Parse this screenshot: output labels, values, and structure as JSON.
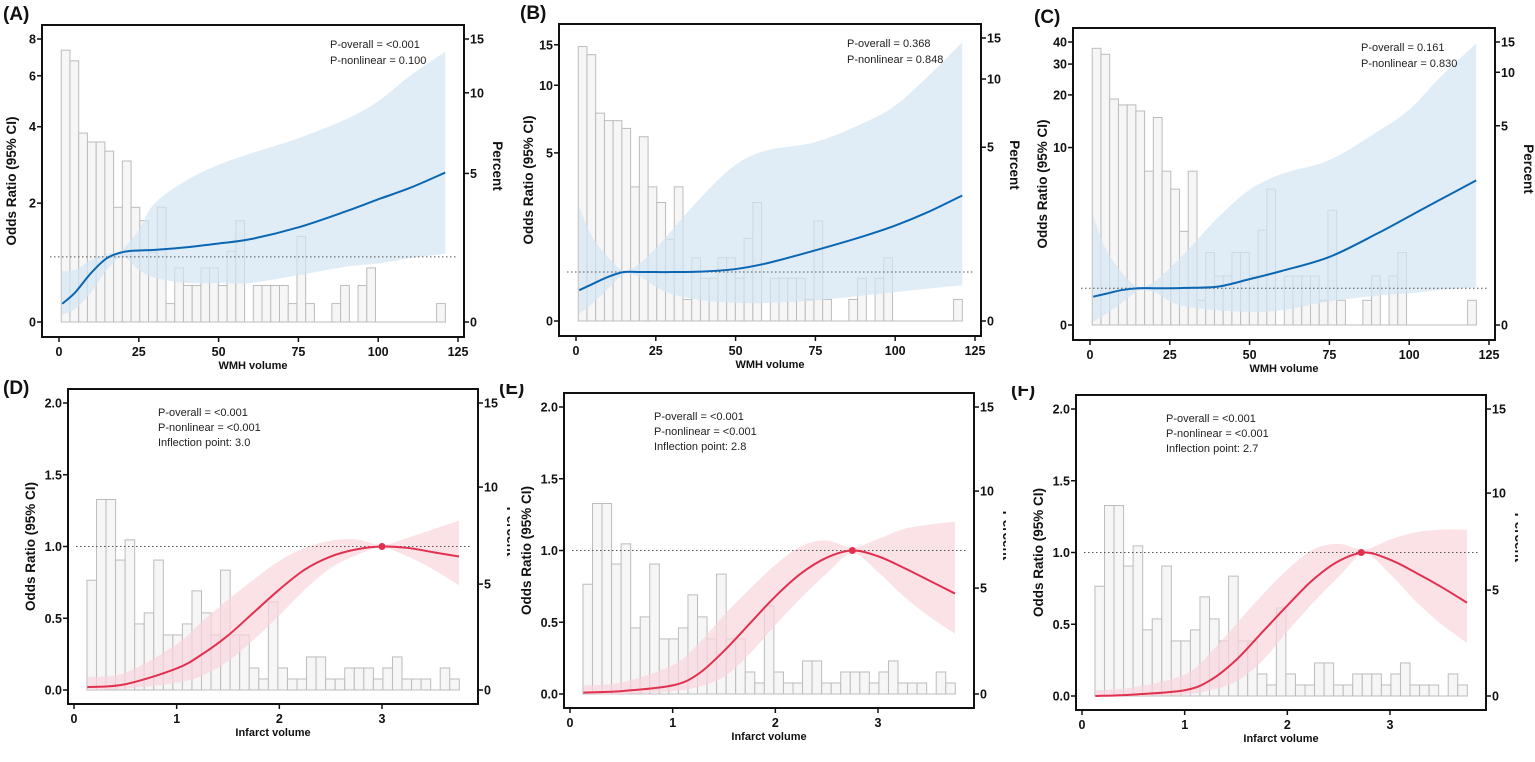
{
  "chart_data": [
    {
      "panel": "(A)",
      "type": "bar+line",
      "xlabel": "WMH volume",
      "ylabel": "Odds Ratio (95% CI)",
      "y2label": "Percent",
      "y_scale": "nonlinear (compressed)",
      "y2_scale": "nonlinear (compressed)",
      "xticks": [
        "0",
        "25",
        "50",
        "75",
        "100",
        "125"
      ],
      "xtick_values": [
        0,
        25,
        50,
        75,
        100,
        125
      ],
      "yticks": [
        "0",
        "2",
        "4",
        "6",
        "8"
      ],
      "ytick_values": [
        0,
        2,
        4,
        6,
        8
      ],
      "y2ticks": [
        "0",
        "5",
        "10",
        "15"
      ],
      "y2tick_values": [
        0,
        5,
        10,
        15
      ],
      "annotations": [
        "P-overall = <0.001",
        "P-nonlinear = 0.100"
      ],
      "reference_line": 1,
      "line_color": "#0b67b2",
      "band_color": "#d3e6f2",
      "histogram": {
        "bin_start": 0.7,
        "bin_width": 2.735,
        "percent": [
          13.96,
          12.97,
          7.5,
          6.95,
          6.95,
          6.38,
          3.86,
          5.77,
          3.86,
          3.41,
          2.35,
          3.86,
          0.62,
          1.82,
          1.23,
          1.23,
          1.82,
          1.82,
          1.23,
          2.38,
          3.41,
          0,
          1.23,
          1.23,
          1.23,
          1.23,
          0.62,
          2.88,
          0.62,
          0,
          0,
          0.62,
          1.23,
          0,
          1.23,
          1.82,
          0,
          0,
          0,
          0,
          0,
          0,
          0,
          0.62
        ]
      },
      "curve": {
        "x": [
          1,
          5,
          10,
          15,
          20,
          25,
          30,
          40,
          50,
          60,
          75,
          90,
          100,
          110,
          121
        ],
        "or": [
          0.28,
          0.45,
          0.75,
          0.98,
          1.09,
          1.12,
          1.13,
          1.18,
          1.25,
          1.33,
          1.55,
          1.85,
          2.1,
          2.4,
          2.8
        ],
        "lower": [
          0.11,
          0.2,
          0.45,
          0.8,
          1.0,
          0.8,
          0.68,
          0.6,
          0.6,
          0.6,
          0.72,
          0.85,
          0.9,
          0.98,
          1.06
        ],
        "upper": [
          0.78,
          0.8,
          0.95,
          1.05,
          1.15,
          1.5,
          2.0,
          2.6,
          3.0,
          3.3,
          3.7,
          4.3,
          5.0,
          6.0,
          7.3
        ]
      }
    },
    {
      "panel": "(B)",
      "type": "bar+line",
      "xlabel": "WMH volume",
      "ylabel": "Odds Ratio (95% CI)",
      "y2label": "Percent",
      "y_scale": "nonlinear (compressed)",
      "y2_scale": "nonlinear (compressed)",
      "xticks": [
        "0",
        "25",
        "50",
        "75",
        "100",
        "125"
      ],
      "xtick_values": [
        0,
        25,
        50,
        75,
        100,
        125
      ],
      "yticks": [
        "0",
        "5",
        "10",
        "15"
      ],
      "ytick_values": [
        0,
        5,
        10,
        15
      ],
      "y2ticks": [
        "0",
        "5",
        "10",
        "15"
      ],
      "y2tick_values": [
        0,
        5,
        10,
        15
      ],
      "annotations": [
        "P-overall = 0.368",
        "P-nonlinear = 0.848"
      ],
      "reference_line": 1,
      "line_color": "#0b67b2",
      "band_color": "#d3e6f2",
      "histogram": {
        "bin_start": 0.7,
        "bin_width": 2.735,
        "percent": [
          13.96,
          12.97,
          7.5,
          6.95,
          6.95,
          6.38,
          3.86,
          5.77,
          3.86,
          3.41,
          2.35,
          3.86,
          0.62,
          1.82,
          1.23,
          1.23,
          1.82,
          1.82,
          1.23,
          2.38,
          3.41,
          0,
          1.23,
          1.23,
          1.23,
          1.23,
          0.62,
          2.88,
          0.62,
          0,
          0,
          0.62,
          1.23,
          0,
          1.23,
          1.82,
          0,
          0,
          0,
          0,
          0,
          0,
          0,
          0.62
        ]
      },
      "curve": {
        "x": [
          1,
          5,
          10,
          15,
          20,
          25,
          30,
          40,
          50,
          60,
          75,
          90,
          100,
          110,
          121
        ],
        "or": [
          0.63,
          0.75,
          0.9,
          1.0,
          1.0,
          1.0,
          1.0,
          1.02,
          1.1,
          1.3,
          1.73,
          2.2,
          2.56,
          3.0,
          3.57
        ],
        "lower": [
          0.15,
          0.35,
          0.65,
          0.95,
          0.9,
          0.7,
          0.55,
          0.42,
          0.37,
          0.37,
          0.42,
          0.52,
          0.59,
          0.66,
          0.73
        ],
        "upper": [
          3.2,
          2.2,
          1.5,
          1.05,
          1.3,
          1.8,
          2.4,
          3.6,
          4.6,
          5.2,
          5.8,
          7.2,
          8.5,
          11,
          15.3
        ]
      }
    },
    {
      "panel": "(C)",
      "type": "bar+line",
      "xlabel": "WMH volume",
      "ylabel": "Odds Ratio (95% CI)",
      "y2label": "Percent",
      "y_scale": "nonlinear (compressed)",
      "y2_scale": "nonlinear (compressed)",
      "xticks": [
        "0",
        "25",
        "50",
        "75",
        "100",
        "125"
      ],
      "xtick_values": [
        0,
        25,
        50,
        75,
        100,
        125
      ],
      "yticks": [
        "0",
        "10",
        "20",
        "30",
        "40"
      ],
      "ytick_values": [
        0,
        10,
        20,
        30,
        40
      ],
      "y2ticks": [
        "0",
        "5",
        "10",
        "15"
      ],
      "y2tick_values": [
        0,
        5,
        10,
        15
      ],
      "annotations": [
        "P-overall = 0.161",
        "P-nonlinear = 0.830"
      ],
      "reference_line": 1,
      "line_color": "#0b67b2",
      "band_color": "#d3e6f2",
      "histogram": {
        "bin_start": 0.7,
        "bin_width": 2.735,
        "percent": [
          13.96,
          12.97,
          7.5,
          6.95,
          6.95,
          6.38,
          3.86,
          5.77,
          3.86,
          3.41,
          2.35,
          3.86,
          0.62,
          1.82,
          1.23,
          1.23,
          1.82,
          1.82,
          1.23,
          2.38,
          3.41,
          0,
          1.23,
          1.23,
          1.23,
          1.23,
          0.62,
          2.88,
          0.62,
          0,
          0,
          0.62,
          1.23,
          0,
          1.23,
          1.82,
          0,
          0,
          0,
          0,
          0,
          0,
          0,
          0.62
        ]
      },
      "curve": {
        "x": [
          1,
          5,
          10,
          15,
          20,
          25,
          30,
          40,
          50,
          60,
          75,
          90,
          100,
          110,
          121
        ],
        "or": [
          0.77,
          0.85,
          0.95,
          1.0,
          1.0,
          1.0,
          1.02,
          1.1,
          1.58,
          2.1,
          3.0,
          4.5,
          5.6,
          6.7,
          7.9
        ],
        "lower": [
          0.09,
          0.3,
          0.6,
          0.92,
          0.9,
          0.65,
          0.5,
          0.4,
          0.36,
          0.4,
          0.64,
          0.8,
          0.86,
          0.95,
          1.05
        ],
        "upper": [
          5.6,
          3.5,
          2.0,
          1.1,
          1.4,
          2.3,
          3.3,
          5.5,
          7.3,
          8.3,
          9.2,
          13,
          17.2,
          26,
          39.4
        ]
      }
    },
    {
      "panel": "(D)",
      "type": "bar+line",
      "xlabel": "Infarct volume",
      "ylabel": "Odds Ratio (95% CI)",
      "y2label": "Percent",
      "y_scale": "linear",
      "ylim": [
        0,
        2
      ],
      "xticks": [
        "0",
        "1",
        "2",
        "3"
      ],
      "xtick_values": [
        0,
        1,
        2,
        3
      ],
      "yticks": [
        "0.0",
        "0.5",
        "1.0",
        "1.5",
        "2.0"
      ],
      "ytick_values": [
        0,
        0.5,
        1,
        1.5,
        2
      ],
      "y2ticks": [
        "0",
        "5",
        "10",
        "15"
      ],
      "y2tick_values": [
        0,
        5,
        10,
        15
      ],
      "annotations": [
        "P-overall = <0.001",
        "P-nonlinear = <0.001",
        "Inflection point: 3.0"
      ],
      "reference_line": 1,
      "inflection_x": 3.0,
      "line_color": "#e0314f",
      "band_color": "#f8d6dd",
      "histogram": {
        "bin_start": 0.126,
        "bin_width": 0.093,
        "percent": [
          5.2,
          9.36,
          9.36,
          6.24,
          7.28,
          3.12,
          3.64,
          6.24,
          2.6,
          2.6,
          3.12,
          4.68,
          3.64,
          2.6,
          5.72,
          2.6,
          2.6,
          1.04,
          0.52,
          4.16,
          1.04,
          0.52,
          0.52,
          1.56,
          1.56,
          0.52,
          0.52,
          1.04,
          1.04,
          1.04,
          0.52,
          1.04,
          1.56,
          0.52,
          0.52,
          0.52,
          0,
          1.04,
          0.52
        ]
      },
      "curve": {
        "x": [
          0.13,
          0.5,
          1.0,
          1.25,
          1.5,
          1.75,
          2.0,
          2.25,
          2.5,
          2.75,
          3.0,
          3.25,
          3.5,
          3.75
        ],
        "or": [
          0.02,
          0.04,
          0.15,
          0.25,
          0.38,
          0.54,
          0.7,
          0.84,
          0.93,
          0.98,
          1.0,
          0.99,
          0.96,
          0.93
        ],
        "lower": [
          0.0,
          0.01,
          0.05,
          0.1,
          0.2,
          0.35,
          0.52,
          0.7,
          0.85,
          0.94,
          0.99,
          0.93,
          0.84,
          0.73
        ],
        "upper": [
          0.09,
          0.12,
          0.32,
          0.48,
          0.63,
          0.77,
          0.9,
          0.99,
          1.04,
          1.05,
          1.01,
          1.06,
          1.12,
          1.18
        ]
      }
    },
    {
      "panel": "(E)",
      "type": "bar+line",
      "xlabel": "Infarct volume",
      "ylabel": "Odds Ratio (95% CI)",
      "y2label": "Percent",
      "y_scale": "linear",
      "ylim": [
        0,
        2
      ],
      "xticks": [
        "0",
        "1",
        "2",
        "3"
      ],
      "xtick_values": [
        0,
        1,
        2,
        3
      ],
      "yticks": [
        "0.0",
        "0.5",
        "1.0",
        "1.5",
        "2.0"
      ],
      "ytick_values": [
        0,
        0.5,
        1,
        1.5,
        2
      ],
      "y2ticks": [
        "0",
        "5",
        "10",
        "15"
      ],
      "y2tick_values": [
        0,
        5,
        10,
        15
      ],
      "annotations": [
        "P-overall = <0.001",
        "P-nonlinear = <0.001",
        "Inflection point: 2.8"
      ],
      "reference_line": 1,
      "inflection_x": 2.75,
      "line_color": "#e0314f",
      "band_color": "#f8d6dd",
      "histogram": {
        "bin_start": 0.126,
        "bin_width": 0.093,
        "percent": [
          5.2,
          9.36,
          9.36,
          6.24,
          7.28,
          3.12,
          3.64,
          6.24,
          2.6,
          2.6,
          3.12,
          4.68,
          3.64,
          2.6,
          5.72,
          2.6,
          2.6,
          1.04,
          0.52,
          4.16,
          1.04,
          0.52,
          0.52,
          1.56,
          1.56,
          0.52,
          0.52,
          1.04,
          1.04,
          1.04,
          0.52,
          1.04,
          1.56,
          0.52,
          0.52,
          0.52,
          0,
          1.04,
          0.52
        ]
      },
      "curve": {
        "x": [
          0.13,
          0.5,
          1.0,
          1.25,
          1.5,
          1.75,
          2.0,
          2.25,
          2.5,
          2.75,
          3.0,
          3.25,
          3.5,
          3.75
        ],
        "or": [
          0.01,
          0.02,
          0.06,
          0.14,
          0.3,
          0.49,
          0.68,
          0.84,
          0.95,
          1.0,
          0.96,
          0.88,
          0.79,
          0.7
        ],
        "lower": [
          0.0,
          0.0,
          0.02,
          0.05,
          0.12,
          0.28,
          0.48,
          0.67,
          0.84,
          0.98,
          0.85,
          0.68,
          0.54,
          0.42
        ],
        "upper": [
          0.06,
          0.08,
          0.2,
          0.35,
          0.55,
          0.73,
          0.9,
          1.03,
          1.07,
          1.02,
          1.08,
          1.15,
          1.18,
          1.2
        ]
      }
    },
    {
      "panel": "(F)",
      "type": "bar+line",
      "xlabel": "Infarct volume",
      "ylabel": "Odds Ratio (95% CI)",
      "y2label": "Percent",
      "y_scale": "linear",
      "ylim": [
        0,
        2
      ],
      "xticks": [
        "0",
        "1",
        "2",
        "3"
      ],
      "xtick_values": [
        0,
        1,
        2,
        3
      ],
      "yticks": [
        "0.0",
        "0.5",
        "1.0",
        "1.5",
        "2.0"
      ],
      "ytick_values": [
        0,
        0.5,
        1,
        1.5,
        2
      ],
      "y2ticks": [
        "0",
        "5",
        "10",
        "15"
      ],
      "y2tick_values": [
        0,
        5,
        10,
        15
      ],
      "annotations": [
        "P-overall = <0.001",
        "P-nonlinear = <0.001",
        "Inflection point: 2.7"
      ],
      "reference_line": 1,
      "inflection_x": 2.72,
      "line_color": "#e0314f",
      "band_color": "#f8d6dd",
      "histogram": {
        "bin_start": 0.126,
        "bin_width": 0.093,
        "percent": [
          5.2,
          9.36,
          9.36,
          6.24,
          7.28,
          3.12,
          3.64,
          6.24,
          2.6,
          2.6,
          3.12,
          4.68,
          3.64,
          2.6,
          5.72,
          2.6,
          2.6,
          1.04,
          0.52,
          4.16,
          1.04,
          0.52,
          0.52,
          1.56,
          1.56,
          0.52,
          0.52,
          1.04,
          1.04,
          1.04,
          0.52,
          1.04,
          1.56,
          0.52,
          0.52,
          0.52,
          0,
          1.04,
          0.52
        ]
      },
      "curve": {
        "x": [
          0.13,
          0.5,
          1.0,
          1.25,
          1.5,
          1.75,
          2.0,
          2.25,
          2.5,
          2.75,
          3.0,
          3.25,
          3.5,
          3.75
        ],
        "or": [
          0.0,
          0.01,
          0.04,
          0.11,
          0.25,
          0.44,
          0.63,
          0.81,
          0.94,
          1.0,
          0.95,
          0.86,
          0.76,
          0.65
        ],
        "lower": [
          0.0,
          0.0,
          0.01,
          0.04,
          0.1,
          0.24,
          0.45,
          0.65,
          0.83,
          0.99,
          0.85,
          0.66,
          0.5,
          0.37
        ],
        "upper": [
          0.04,
          0.06,
          0.15,
          0.3,
          0.5,
          0.7,
          0.88,
          1.02,
          1.06,
          1.02,
          1.09,
          1.14,
          1.16,
          1.16
        ]
      }
    }
  ]
}
